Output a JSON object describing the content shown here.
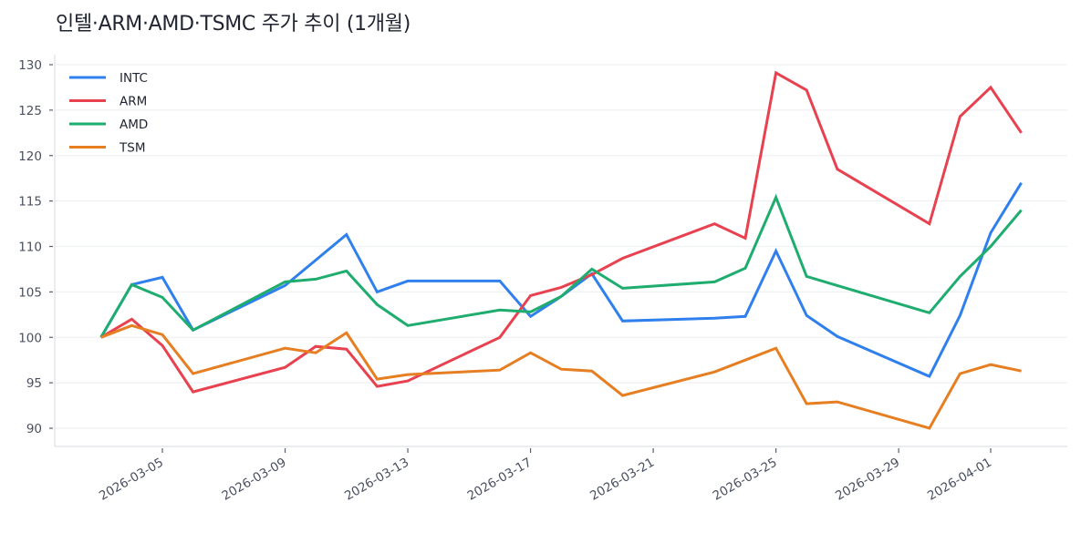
{
  "title": "인텔·ARM·AMD·TSMC 주가 추이 (1개월)",
  "chart_data": {
    "type": "line",
    "title": "인텔·ARM·AMD·TSMC 주가 추이 (1개월)",
    "xlabel": "",
    "ylabel": "",
    "ylim": [
      88,
      131
    ],
    "yticks": [
      90,
      95,
      100,
      105,
      110,
      115,
      120,
      125,
      130
    ],
    "xtick_labels": [
      "2026-03-05",
      "2026-03-09",
      "2026-03-13",
      "2026-03-17",
      "2026-03-21",
      "2026-03-25",
      "2026-03-29",
      "2026-04-01"
    ],
    "grid": "horizontal",
    "legend_position": "upper left",
    "x": [
      "2026-03-03",
      "2026-03-04",
      "2026-03-05",
      "2026-03-06",
      "2026-03-09",
      "2026-03-10",
      "2026-03-11",
      "2026-03-12",
      "2026-03-13",
      "2026-03-16",
      "2026-03-17",
      "2026-03-18",
      "2026-03-19",
      "2026-03-20",
      "2026-03-23",
      "2026-03-24",
      "2026-03-25",
      "2026-03-26",
      "2026-03-27",
      "2026-03-30",
      "2026-03-31",
      "2026-04-01",
      "2026-04-02"
    ],
    "series": [
      {
        "name": "INTC",
        "color": "#2f80ed",
        "values": [
          100.0,
          105.8,
          106.6,
          100.8,
          105.7,
          108.5,
          111.3,
          105.0,
          106.2,
          106.2,
          102.3,
          104.5,
          107.0,
          101.8,
          102.1,
          102.3,
          109.5,
          102.4,
          100.1,
          95.7,
          102.4,
          111.5,
          117.0
        ]
      },
      {
        "name": "ARM",
        "color": "#e8414f",
        "values": [
          100.0,
          102.0,
          99.1,
          94.0,
          96.7,
          99.0,
          98.7,
          94.6,
          95.2,
          100.0,
          104.6,
          105.5,
          106.9,
          108.7,
          112.5,
          110.9,
          129.1,
          127.2,
          118.5,
          112.5,
          124.3,
          127.5,
          122.5
        ]
      },
      {
        "name": "AMD",
        "color": "#1fad6f",
        "values": [
          100.0,
          105.8,
          104.4,
          100.8,
          106.1,
          106.4,
          107.3,
          103.6,
          101.3,
          103.0,
          102.8,
          104.5,
          107.5,
          105.4,
          106.1,
          107.6,
          115.4,
          106.7,
          105.7,
          102.7,
          106.7,
          110.0,
          114.0
        ]
      },
      {
        "name": "TSM",
        "color": "#e67e22",
        "values": [
          100.0,
          101.3,
          100.3,
          96.0,
          98.8,
          98.3,
          100.5,
          95.4,
          95.9,
          96.4,
          98.3,
          96.5,
          96.3,
          93.6,
          96.2,
          97.5,
          98.8,
          92.7,
          92.9,
          90.0,
          96.0,
          97.0,
          96.3
        ]
      }
    ]
  },
  "legend": {
    "items": [
      {
        "label": "INTC",
        "color": "#2f80ed"
      },
      {
        "label": "ARM",
        "color": "#e8414f"
      },
      {
        "label": "AMD",
        "color": "#1fad6f"
      },
      {
        "label": "TSM",
        "color": "#e67e22"
      }
    ]
  },
  "colors": {
    "axis": "#e3e5ea",
    "grid": "#f0f1f4",
    "tick": "#5a6070",
    "text": "#1f2430"
  }
}
